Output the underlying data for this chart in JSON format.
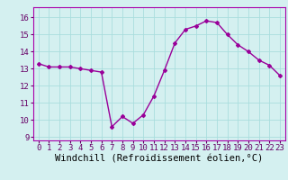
{
  "x": [
    0,
    1,
    2,
    3,
    4,
    5,
    6,
    7,
    8,
    9,
    10,
    11,
    12,
    13,
    14,
    15,
    16,
    17,
    18,
    19,
    20,
    21,
    22,
    23
  ],
  "y": [
    13.3,
    13.1,
    13.1,
    13.1,
    13.0,
    12.9,
    12.8,
    9.6,
    10.2,
    9.8,
    10.3,
    11.4,
    12.9,
    14.5,
    15.3,
    15.5,
    15.8,
    15.7,
    15.0,
    14.4,
    14.0,
    13.5,
    13.2,
    12.6
  ],
  "line_color": "#990099",
  "marker": "D",
  "marker_size": 2.0,
  "bg_color": "#d4f0f0",
  "grid_color": "#aadddd",
  "xlabel": "Windchill (Refroidissement éolien,°C)",
  "xlabel_fontsize": 7.5,
  "ylim": [
    8.8,
    16.6
  ],
  "yticks": [
    9,
    10,
    11,
    12,
    13,
    14,
    15,
    16
  ],
  "xticks": [
    0,
    1,
    2,
    3,
    4,
    5,
    6,
    7,
    8,
    9,
    10,
    11,
    12,
    13,
    14,
    15,
    16,
    17,
    18,
    19,
    20,
    21,
    22,
    23
  ],
  "tick_fontsize": 6.5,
  "spine_color": "#aa00aa",
  "line_width": 1.0
}
